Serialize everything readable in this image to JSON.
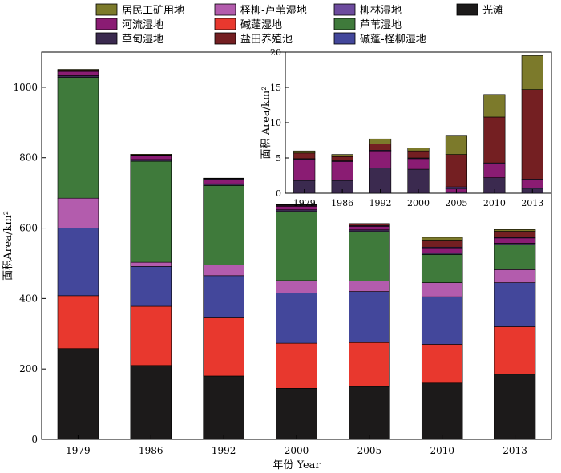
{
  "chart_data": [
    {
      "type": "bar",
      "stacked": true,
      "xlabel": "年份 Year",
      "ylabel": "面积Area/km²",
      "ylim": [
        0,
        1100
      ],
      "yticks": [
        0,
        200,
        400,
        600,
        800,
        1000
      ],
      "categories": [
        "1979",
        "1986",
        "1992",
        "2000",
        "2005",
        "2010",
        "2013"
      ],
      "series": [
        {
          "name": "光滩",
          "color": "#1c1a1a",
          "values": [
            258,
            210,
            180,
            145,
            150,
            160,
            185
          ]
        },
        {
          "name": "碱蓬湿地",
          "color": "#e8382e",
          "values": [
            150,
            168,
            165,
            128,
            125,
            110,
            135
          ]
        },
        {
          "name": "碱蓬-柽柳湿地",
          "color": "#43479b",
          "values": [
            192,
            113,
            120,
            143,
            145,
            135,
            125
          ]
        },
        {
          "name": "柽柳-芦苇湿地",
          "color": "#b35cad",
          "values": [
            85,
            12,
            30,
            35,
            30,
            40,
            37
          ]
        },
        {
          "name": "芦苇湿地",
          "color": "#3f7a3b",
          "values": [
            343,
            287,
            226,
            196,
            140,
            80,
            70
          ]
        },
        {
          "name": "草甸湿地",
          "color": "#3b2a4f",
          "values": [
            5,
            5,
            5,
            5,
            5,
            5,
            5
          ]
        },
        {
          "name": "河流湿地",
          "color": "#8a1c73",
          "values": [
            12,
            10,
            12,
            10,
            10,
            14,
            15
          ]
        },
        {
          "name": "柳林湿地",
          "color": "#6d4b9e",
          "values": [
            2,
            2,
            2,
            2,
            2,
            2,
            2
          ]
        },
        {
          "name": "盐田养殖池",
          "color": "#741f22",
          "values": [
            2,
            1,
            1,
            2,
            5,
            20,
            17
          ]
        },
        {
          "name": "居民工矿用地",
          "color": "#7c7a2b",
          "values": [
            2,
            2,
            1,
            1,
            1,
            8,
            5
          ]
        }
      ]
    },
    {
      "type": "bar",
      "stacked": true,
      "xlabel": "",
      "ylabel": "面积 Area/km²",
      "ylim": [
        0,
        20
      ],
      "yticks": [
        0,
        5,
        10,
        15,
        20
      ],
      "categories": [
        "1979",
        "1986",
        "1992",
        "2000",
        "2005",
        "2010",
        "2013"
      ],
      "series": [
        {
          "name": "草甸湿地",
          "color": "#3b2a4f",
          "values": [
            1.8,
            1.8,
            3.6,
            3.4,
            0.2,
            2.2,
            0.7
          ]
        },
        {
          "name": "河流湿地",
          "color": "#8a1c73",
          "values": [
            3.0,
            2.7,
            2.4,
            1.5,
            0.4,
            2.0,
            1.2
          ]
        },
        {
          "name": "柳林湿地",
          "color": "#6d4b9e",
          "values": [
            0.1,
            0.1,
            0.1,
            0.1,
            0.3,
            0.1,
            0.1
          ]
        },
        {
          "name": "盐田养殖池",
          "color": "#741f22",
          "values": [
            0.8,
            0.6,
            0.9,
            1.0,
            4.6,
            6.5,
            12.7
          ]
        },
        {
          "name": "居民工矿用地",
          "color": "#7c7a2b",
          "values": [
            0.3,
            0.3,
            0.7,
            0.4,
            2.6,
            3.2,
            4.8
          ]
        }
      ]
    }
  ],
  "legend": [
    {
      "label": "居民工矿用地",
      "color": "#7c7a2b"
    },
    {
      "label": "柽柳-芦苇湿地",
      "color": "#b35cad"
    },
    {
      "label": "柳林湿地",
      "color": "#6d4b9e"
    },
    {
      "label": "光滩",
      "color": "#1c1a1a"
    },
    {
      "label": "河流湿地",
      "color": "#8a1c73"
    },
    {
      "label": "碱蓬湿地",
      "color": "#e8382e"
    },
    {
      "label": "芦苇湿地",
      "color": "#3f7a3b"
    },
    {
      "label": "草甸湿地",
      "color": "#3b2a4f"
    },
    {
      "label": "盐田养殖池",
      "color": "#741f22"
    },
    {
      "label": "碱蓬-柽柳湿地",
      "color": "#43479b"
    }
  ]
}
